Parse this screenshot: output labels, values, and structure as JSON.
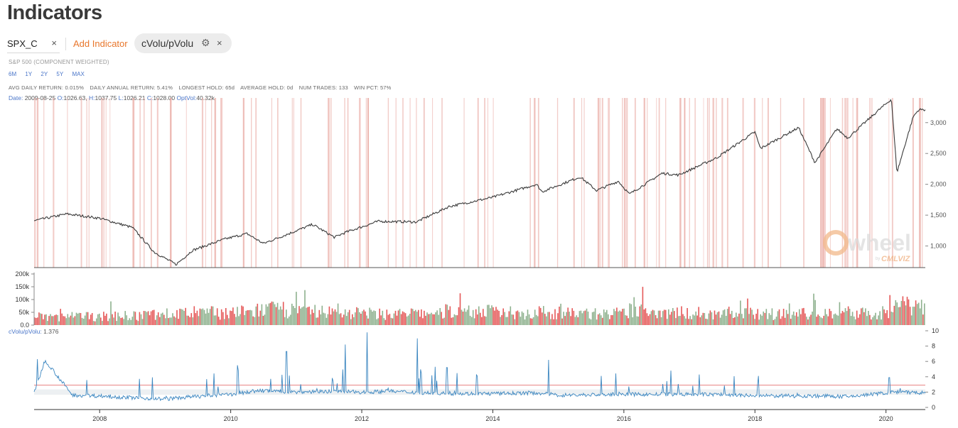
{
  "page": {
    "title": "Indicators"
  },
  "toolbar": {
    "symbol": "SPX_C",
    "symbol_clear": "×",
    "add_indicator": "Add Indicator",
    "chip_label": "cVolu/pVolu",
    "chip_settings_icon": "gear-icon",
    "chip_remove": "×"
  },
  "subtitle": "S&P 500 (COMPONENT WEIGHTED)",
  "ranges": [
    "6M",
    "1Y",
    "2Y",
    "5Y",
    "MAX"
  ],
  "stats": {
    "avg_daily": "AVG DAILY RETURN: 0.015%",
    "annual": "DAILY ANNUAL RETURN: 5.41%",
    "longest": "LONGEST HOLD: 65d",
    "average": "AVERAGE HOLD: 0d",
    "trades": "NUM TRADES: 133",
    "win": "WIN PCT: 57%"
  },
  "ohlc": {
    "date_label": "Date:",
    "date": "2009-08-25",
    "o_label": "O:",
    "o": "1026.63",
    "h_label": "H:",
    "h": "1037.75",
    "l_label": "L:",
    "l": "1026.21",
    "c_label": "C:",
    "c": "1028.00",
    "v_label": "OptVol:",
    "v": "40.32k"
  },
  "indicator_readout": {
    "label": "cVolu/pVolu:",
    "value": "1.376"
  },
  "colors": {
    "accent": "#e8762b",
    "link": "#4a76c9",
    "signal": "#e8a29a",
    "vol_up": "#7aa37a",
    "vol_down": "#e03b3b",
    "ratio_line": "#3b86c0",
    "threshold": "#e88080"
  },
  "watermark": {
    "text": "wheel",
    "sub": "by",
    "brand": "CMLVIZ"
  },
  "chart_data": [
    {
      "type": "line",
      "name": "price",
      "x": [
        "2007-01",
        "2007-07",
        "2008-01",
        "2008-07",
        "2008-11",
        "2009-03",
        "2009-06",
        "2009-12",
        "2010-04",
        "2010-07",
        "2011-04",
        "2011-08",
        "2011-10",
        "2012-04",
        "2012-11",
        "2013-05",
        "2014-01",
        "2014-09",
        "2014-10",
        "2015-05",
        "2015-08",
        "2015-12",
        "2016-02",
        "2016-08",
        "2016-11",
        "2017-06",
        "2018-01",
        "2018-02",
        "2018-09",
        "2018-12",
        "2019-04",
        "2019-06",
        "2019-12",
        "2020-02",
        "2020-03",
        "2020-06",
        "2020-07"
      ],
      "y": [
        1410,
        1520,
        1450,
        1300,
        900,
        700,
        930,
        1115,
        1200,
        1040,
        1350,
        1140,
        1220,
        1400,
        1390,
        1640,
        1790,
        2000,
        1880,
        2120,
        1900,
        2050,
        1840,
        2180,
        2150,
        2430,
        2850,
        2580,
        2920,
        2350,
        2900,
        2750,
        3230,
        3380,
        2190,
        3100,
        3210
      ],
      "yaxis_ticks": [
        "1,000",
        "1,500",
        "2,000",
        "2,500",
        "3,000"
      ],
      "ylim": [
        650,
        3400
      ]
    },
    {
      "type": "bar",
      "name": "option volume",
      "yaxis_ticks": [
        "0.0",
        "50k",
        "100k",
        "150k",
        "200k"
      ],
      "ylim": [
        0,
        200000
      ],
      "series": [
        {
          "name": "",
          "values": [
            40000,
            42000,
            45000,
            55000,
            60000,
            62000,
            75000,
            65000,
            60000,
            55000,
            55000,
            68000,
            65000,
            60000,
            58000,
            55000,
            70000,
            60000,
            55000,
            55000,
            55000,
            60000,
            60000,
            100000
          ]
        }
      ]
    },
    {
      "type": "line",
      "name": "cVolu/pVolu",
      "x": [
        "2007-01",
        "2007-03",
        "2007-08",
        "2008-01",
        "2008-06",
        "2009-01",
        "2009-06",
        "2010-01",
        "2010-06",
        "2011-01",
        "2011-06",
        "2012-01",
        "2012-06",
        "2013-01",
        "2013-06",
        "2014-01",
        "2014-09",
        "2015-01",
        "2016-01",
        "2017-01",
        "2017-06",
        "2018-01",
        "2019-01",
        "2019-06",
        "2020-01",
        "2020-03",
        "2020-07"
      ],
      "y": [
        1.8,
        6.2,
        1.6,
        1.5,
        1.3,
        1.1,
        1.4,
        1.7,
        2.2,
        2.0,
        2.1,
        2.0,
        2.1,
        1.9,
        1.8,
        1.8,
        1.9,
        1.6,
        1.7,
        1.7,
        1.7,
        1.5,
        1.5,
        1.4,
        1.9,
        2.0,
        1.9
      ],
      "peaks": [
        [
          2007.05,
          6.3
        ],
        [
          2010.1,
          5.5
        ],
        [
          2010.85,
          7.3
        ],
        [
          2011.75,
          8.2
        ],
        [
          2012.08,
          9.8
        ],
        [
          2012.85,
          9.0
        ],
        [
          2013.3,
          5.2
        ],
        [
          2014.85,
          6.2
        ],
        [
          2017.15,
          4.3
        ],
        [
          2018.05,
          4.1
        ],
        [
          2020.05,
          3.9
        ]
      ],
      "threshold": 2.9,
      "yaxis_ticks": [
        "0",
        "2",
        "4",
        "6",
        "8",
        "10"
      ],
      "ylim": [
        0,
        10
      ]
    }
  ],
  "x_axis": {
    "range": [
      2007,
      2020.6
    ],
    "ticks": [
      "2008",
      "2010",
      "2012",
      "2014",
      "2016",
      "2018",
      "2020"
    ]
  }
}
